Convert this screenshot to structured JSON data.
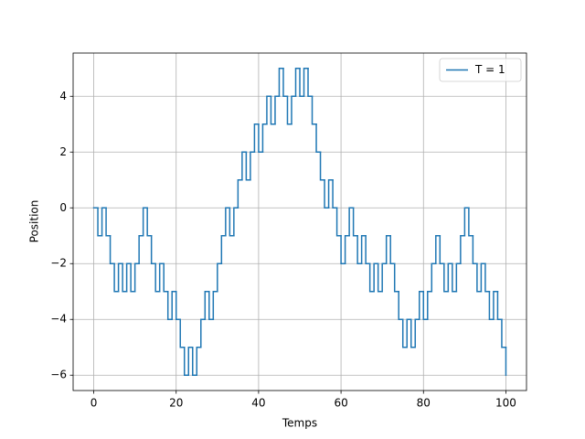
{
  "chart_data": {
    "type": "step",
    "xlabel": "Temps",
    "ylabel": "Position",
    "x": [
      0,
      1,
      2,
      3,
      4,
      5,
      6,
      7,
      8,
      9,
      10,
      11,
      12,
      13,
      14,
      15,
      16,
      17,
      18,
      19,
      20,
      21,
      22,
      23,
      24,
      25,
      26,
      27,
      28,
      29,
      30,
      31,
      32,
      33,
      34,
      35,
      36,
      37,
      38,
      39,
      40,
      41,
      42,
      43,
      44,
      45,
      46,
      47,
      48,
      49,
      50,
      51,
      52,
      53,
      54,
      55,
      56,
      57,
      58,
      59,
      60,
      61,
      62,
      63,
      64,
      65,
      66,
      67,
      68,
      69,
      70,
      71,
      72,
      73,
      74,
      75,
      76,
      77,
      78,
      79,
      80,
      81,
      82,
      83,
      84,
      85,
      86,
      87,
      88,
      89,
      90,
      91,
      92,
      93,
      94,
      95,
      96,
      97,
      98,
      99,
      100
    ],
    "series": [
      {
        "name": "T = 1",
        "color": "#1f77b4",
        "values": [
          0,
          -1,
          0,
          -1,
          -2,
          -3,
          -2,
          -3,
          -2,
          -3,
          -2,
          -1,
          0,
          -1,
          -2,
          -3,
          -2,
          -3,
          -4,
          -3,
          -4,
          -5,
          -6,
          -5,
          -6,
          -5,
          -4,
          -3,
          -4,
          -3,
          -2,
          -1,
          0,
          -1,
          0,
          1,
          2,
          1,
          2,
          3,
          2,
          3,
          4,
          3,
          4,
          5,
          4,
          3,
          4,
          5,
          4,
          5,
          4,
          3,
          2,
          1,
          0,
          1,
          0,
          -1,
          -2,
          -1,
          0,
          -1,
          -2,
          -1,
          -2,
          -3,
          -2,
          -3,
          -2,
          -1,
          -2,
          -3,
          -4,
          -5,
          -4,
          -5,
          -4,
          -3,
          -4,
          -3,
          -2,
          -1,
          -2,
          -3,
          -2,
          -3,
          -2,
          -1,
          0,
          -1,
          -2,
          -3,
          -2,
          -3,
          -4,
          -3,
          -4,
          -5,
          -6
        ]
      }
    ],
    "xlim": [
      -5,
      105
    ],
    "ylim": [
      -6.55,
      5.55
    ],
    "xticks": [
      0,
      20,
      40,
      60,
      80,
      100
    ],
    "yticks": [
      {
        "value": -6,
        "label": "−6"
      },
      {
        "value": -4,
        "label": "−4"
      },
      {
        "value": -2,
        "label": "−2"
      },
      0,
      2,
      4
    ],
    "grid": true,
    "legend": "upper right"
  }
}
